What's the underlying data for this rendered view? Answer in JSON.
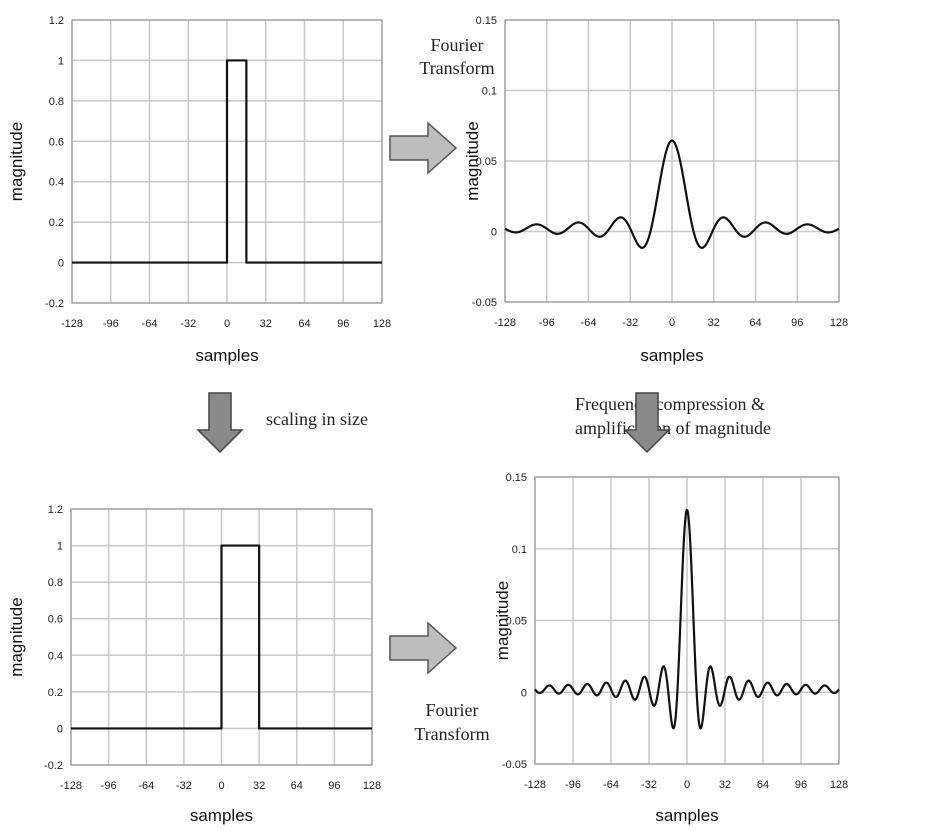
{
  "annotations": {
    "fourier_top": [
      "Fourier",
      "Transform"
    ],
    "fourier_bottom": [
      "Fourier",
      "Transform"
    ],
    "scaling": "scaling in size",
    "frequency": [
      "Frequency compression &",
      "amplification of magnitude"
    ]
  },
  "chart_data": [
    {
      "id": "rect-narrow",
      "type": "line",
      "xlabel": "samples",
      "ylabel": "magnitude",
      "xlim": [
        -128,
        128
      ],
      "ylim": [
        -0.2,
        1.2
      ],
      "xticks": [
        "-128",
        "-96",
        "-64",
        "-32",
        "0",
        "32",
        "64",
        "96",
        "128"
      ],
      "yticks": [
        "-0.2",
        "0",
        "0.2",
        "0.4",
        "0.6",
        "0.8",
        "1",
        "1.2"
      ],
      "grid": true,
      "x": [
        -128,
        0,
        0,
        16,
        16,
        128
      ],
      "y": [
        0,
        0,
        1,
        1,
        0,
        0
      ]
    },
    {
      "id": "fft-narrow",
      "type": "line",
      "xlabel": "samples",
      "ylabel": "magnitude",
      "xlim": [
        -128,
        128
      ],
      "ylim": [
        -0.05,
        0.15
      ],
      "xticks": [
        "-128",
        "-96",
        "-64",
        "-32",
        "0",
        "32",
        "64",
        "96",
        "128"
      ],
      "yticks": [
        "-0.05",
        "0",
        "0.05",
        "0.1",
        "0.15"
      ],
      "grid": true,
      "series": [
        {
          "function": "sinc",
          "peak": 0.0625,
          "width": 16,
          "floor": 0.002
        }
      ]
    },
    {
      "id": "rect-wide",
      "type": "line",
      "xlabel": "samples",
      "ylabel": "magnitude",
      "xlim": [
        -128,
        128
      ],
      "ylim": [
        -0.2,
        1.2
      ],
      "xticks": [
        "-128",
        "-96",
        "-64",
        "-32",
        "0",
        "32",
        "64",
        "96",
        "128"
      ],
      "yticks": [
        "-0.2",
        "0",
        "0.2",
        "0.4",
        "0.6",
        "0.8",
        "1",
        "1.2"
      ],
      "grid": true,
      "x": [
        -128,
        0,
        0,
        32,
        32,
        128
      ],
      "y": [
        0,
        0,
        1,
        1,
        0,
        0
      ]
    },
    {
      "id": "fft-wide",
      "type": "line",
      "xlabel": "samples",
      "ylabel": "magnitude",
      "xlim": [
        -128,
        128
      ],
      "ylim": [
        -0.05,
        0.15
      ],
      "xticks": [
        "-128",
        "-96",
        "-64",
        "-32",
        "0",
        "32",
        "64",
        "96",
        "128"
      ],
      "yticks": [
        "-0.05",
        "0",
        "0.05",
        "0.1",
        "0.15"
      ],
      "grid": true,
      "series": [
        {
          "function": "sinc",
          "peak": 0.125,
          "width": 8,
          "floor": 0.002
        }
      ]
    }
  ]
}
